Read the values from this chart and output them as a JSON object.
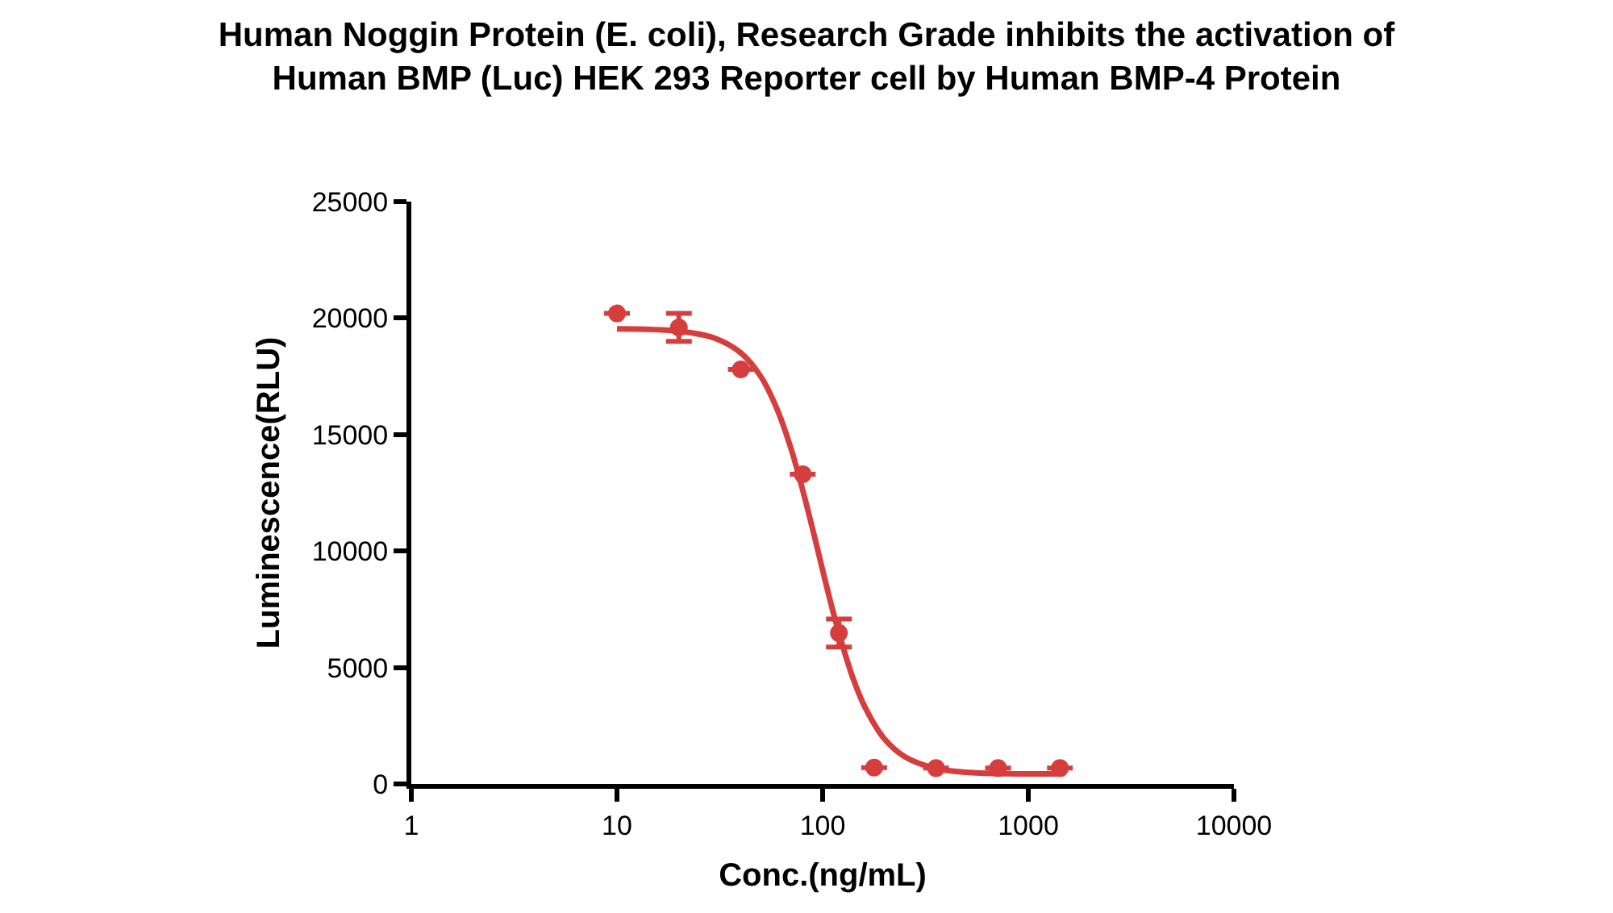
{
  "chart_data": {
    "type": "scatter",
    "title": "Human Noggin Protein (E. coli), Research Grade inhibits the activation of\nHuman BMP (Luc) HEK 293 Reporter cell by Human BMP-4 Protein",
    "xlabel": "Conc.(ng/mL)",
    "ylabel": "Luminescence(RLU)",
    "log": "x",
    "xlim": [
      1,
      10000
    ],
    "xticks": [
      1,
      10,
      100,
      1000,
      10000
    ],
    "ylim": [
      0,
      25000
    ],
    "yticks": [
      0,
      5000,
      10000,
      15000,
      20000,
      25000
    ],
    "legend": false,
    "marker": "circle",
    "series": [
      {
        "color": "#d63e3e",
        "x": [
          10,
          20,
          40,
          80,
          120,
          178,
          356,
          713,
          1425
        ],
        "values": [
          20200,
          19600,
          17800,
          13300,
          6480,
          700,
          680,
          680,
          680
        ],
        "errors": [
          null,
          600,
          null,
          null,
          600,
          null,
          null,
          null,
          null
        ]
      },
      {
        "type": "line",
        "color": "#d63e3e",
        "marker": "none",
        "line_style": "solid",
        "x": [
          10,
          20,
          30,
          40,
          50,
          60,
          70,
          80,
          90,
          100,
          110,
          120,
          140,
          160,
          200,
          250,
          350,
          500,
          800,
          1425
        ],
        "values": [
          19540,
          19440,
          19130,
          18510,
          17500,
          16100,
          14430,
          12620,
          10840,
          9180,
          7710,
          6480,
          4580,
          3330,
          1930,
          1180,
          680,
          500,
          440,
          430
        ]
      }
    ]
  }
}
